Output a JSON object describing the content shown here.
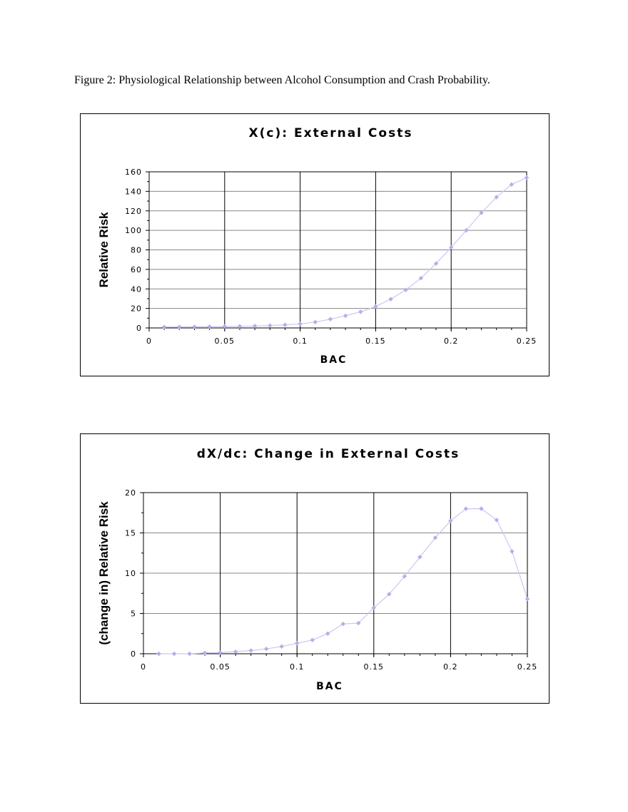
{
  "caption": "Figure 2: Physiological Relationship between Alcohol Consumption and Crash Probability.",
  "chart_data": [
    {
      "type": "line",
      "title": "X(c): External Costs",
      "xlabel": "BAC",
      "ylabel": "Relative Risk",
      "xlim": [
        0,
        0.25
      ],
      "ylim": [
        0,
        160
      ],
      "x_ticks": [
        "0",
        "0.05",
        "0.1",
        "0.15",
        "0.2",
        "0.25"
      ],
      "y_ticks": [
        "0",
        "20",
        "40",
        "60",
        "80",
        "100",
        "120",
        "140",
        "160"
      ],
      "grid": true,
      "line_color": "#c8c8f4",
      "marker_color": "#b0b0ec",
      "series": [
        {
          "x": [
            0.01,
            0.02,
            0.03,
            0.04,
            0.05,
            0.06,
            0.07,
            0.08,
            0.09,
            0.1,
            0.11,
            0.12,
            0.13,
            0.14,
            0.15,
            0.16,
            0.17,
            0.18,
            0.19,
            0.2,
            0.21,
            0.22,
            0.23,
            0.24,
            0.25
          ],
          "values": [
            1,
            1,
            1.2,
            1.3,
            1.5,
            1.7,
            2.0,
            2.5,
            3.2,
            4.2,
            6.0,
            9.0,
            12.5,
            16.5,
            22,
            29.5,
            39,
            51,
            66,
            82.5,
            100,
            118,
            134,
            147,
            154
          ]
        }
      ]
    },
    {
      "type": "line",
      "title": "dX/dc: Change in External Costs",
      "xlabel": "BAC",
      "ylabel": "(change in) Relative Risk",
      "xlim": [
        0,
        0.25
      ],
      "ylim": [
        0,
        20
      ],
      "x_ticks": [
        "0",
        "0.05",
        "0.1",
        "0.15",
        "0.2",
        "0.25"
      ],
      "y_ticks": [
        "0",
        "5",
        "10",
        "15",
        "20"
      ],
      "grid": true,
      "line_color": "#c8c8f4",
      "marker_color": "#b0b0ec",
      "series": [
        {
          "x": [
            0.01,
            0.02,
            0.03,
            0.04,
            0.05,
            0.06,
            0.07,
            0.08,
            0.09,
            0.1,
            0.11,
            0.12,
            0.13,
            0.14,
            0.15,
            0.16,
            0.17,
            0.18,
            0.19,
            0.2,
            0.21,
            0.22,
            0.23,
            0.24,
            0.25
          ],
          "values": [
            0,
            0,
            0,
            0.1,
            0.15,
            0.25,
            0.4,
            0.6,
            0.9,
            1.3,
            1.7,
            2.5,
            3.7,
            3.8,
            5.7,
            7.4,
            9.6,
            12.0,
            14.4,
            16.5,
            18.0,
            18.0,
            16.6,
            12.7,
            6.8
          ]
        }
      ]
    }
  ]
}
